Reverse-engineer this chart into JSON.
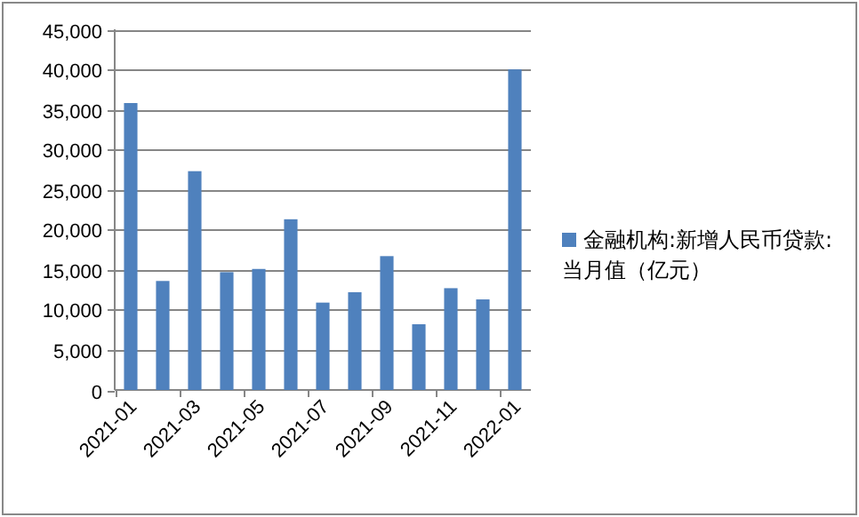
{
  "chart_data": {
    "type": "bar",
    "categories": [
      "2021-01",
      null,
      "2021-03",
      null,
      "2021-05",
      null,
      "2021-07",
      null,
      "2021-09",
      null,
      "2021-11",
      null,
      "2022-01"
    ],
    "series": [
      {
        "name": "金融机构:新增人民币贷款:当月值（亿元）",
        "color": "#4f81bd",
        "values": [
          35800,
          13600,
          27300,
          14700,
          15100,
          21300,
          10900,
          12200,
          16700,
          8200,
          12700,
          11300,
          40000
        ]
      }
    ],
    "ylim": [
      0,
      45000
    ],
    "yticks": [
      {
        "value": 0,
        "label": "0"
      },
      {
        "value": 5000,
        "label": "5,000"
      },
      {
        "value": 10000,
        "label": "10,000"
      },
      {
        "value": 15000,
        "label": "15,000"
      },
      {
        "value": 20000,
        "label": "20,000"
      },
      {
        "value": 25000,
        "label": "25,000"
      },
      {
        "value": 30000,
        "label": "30,000"
      },
      {
        "value": 35000,
        "label": "35,000"
      },
      {
        "value": 40000,
        "label": "40,000"
      },
      {
        "value": 45000,
        "label": "45,000"
      }
    ],
    "grid": "y",
    "legend": "right"
  }
}
